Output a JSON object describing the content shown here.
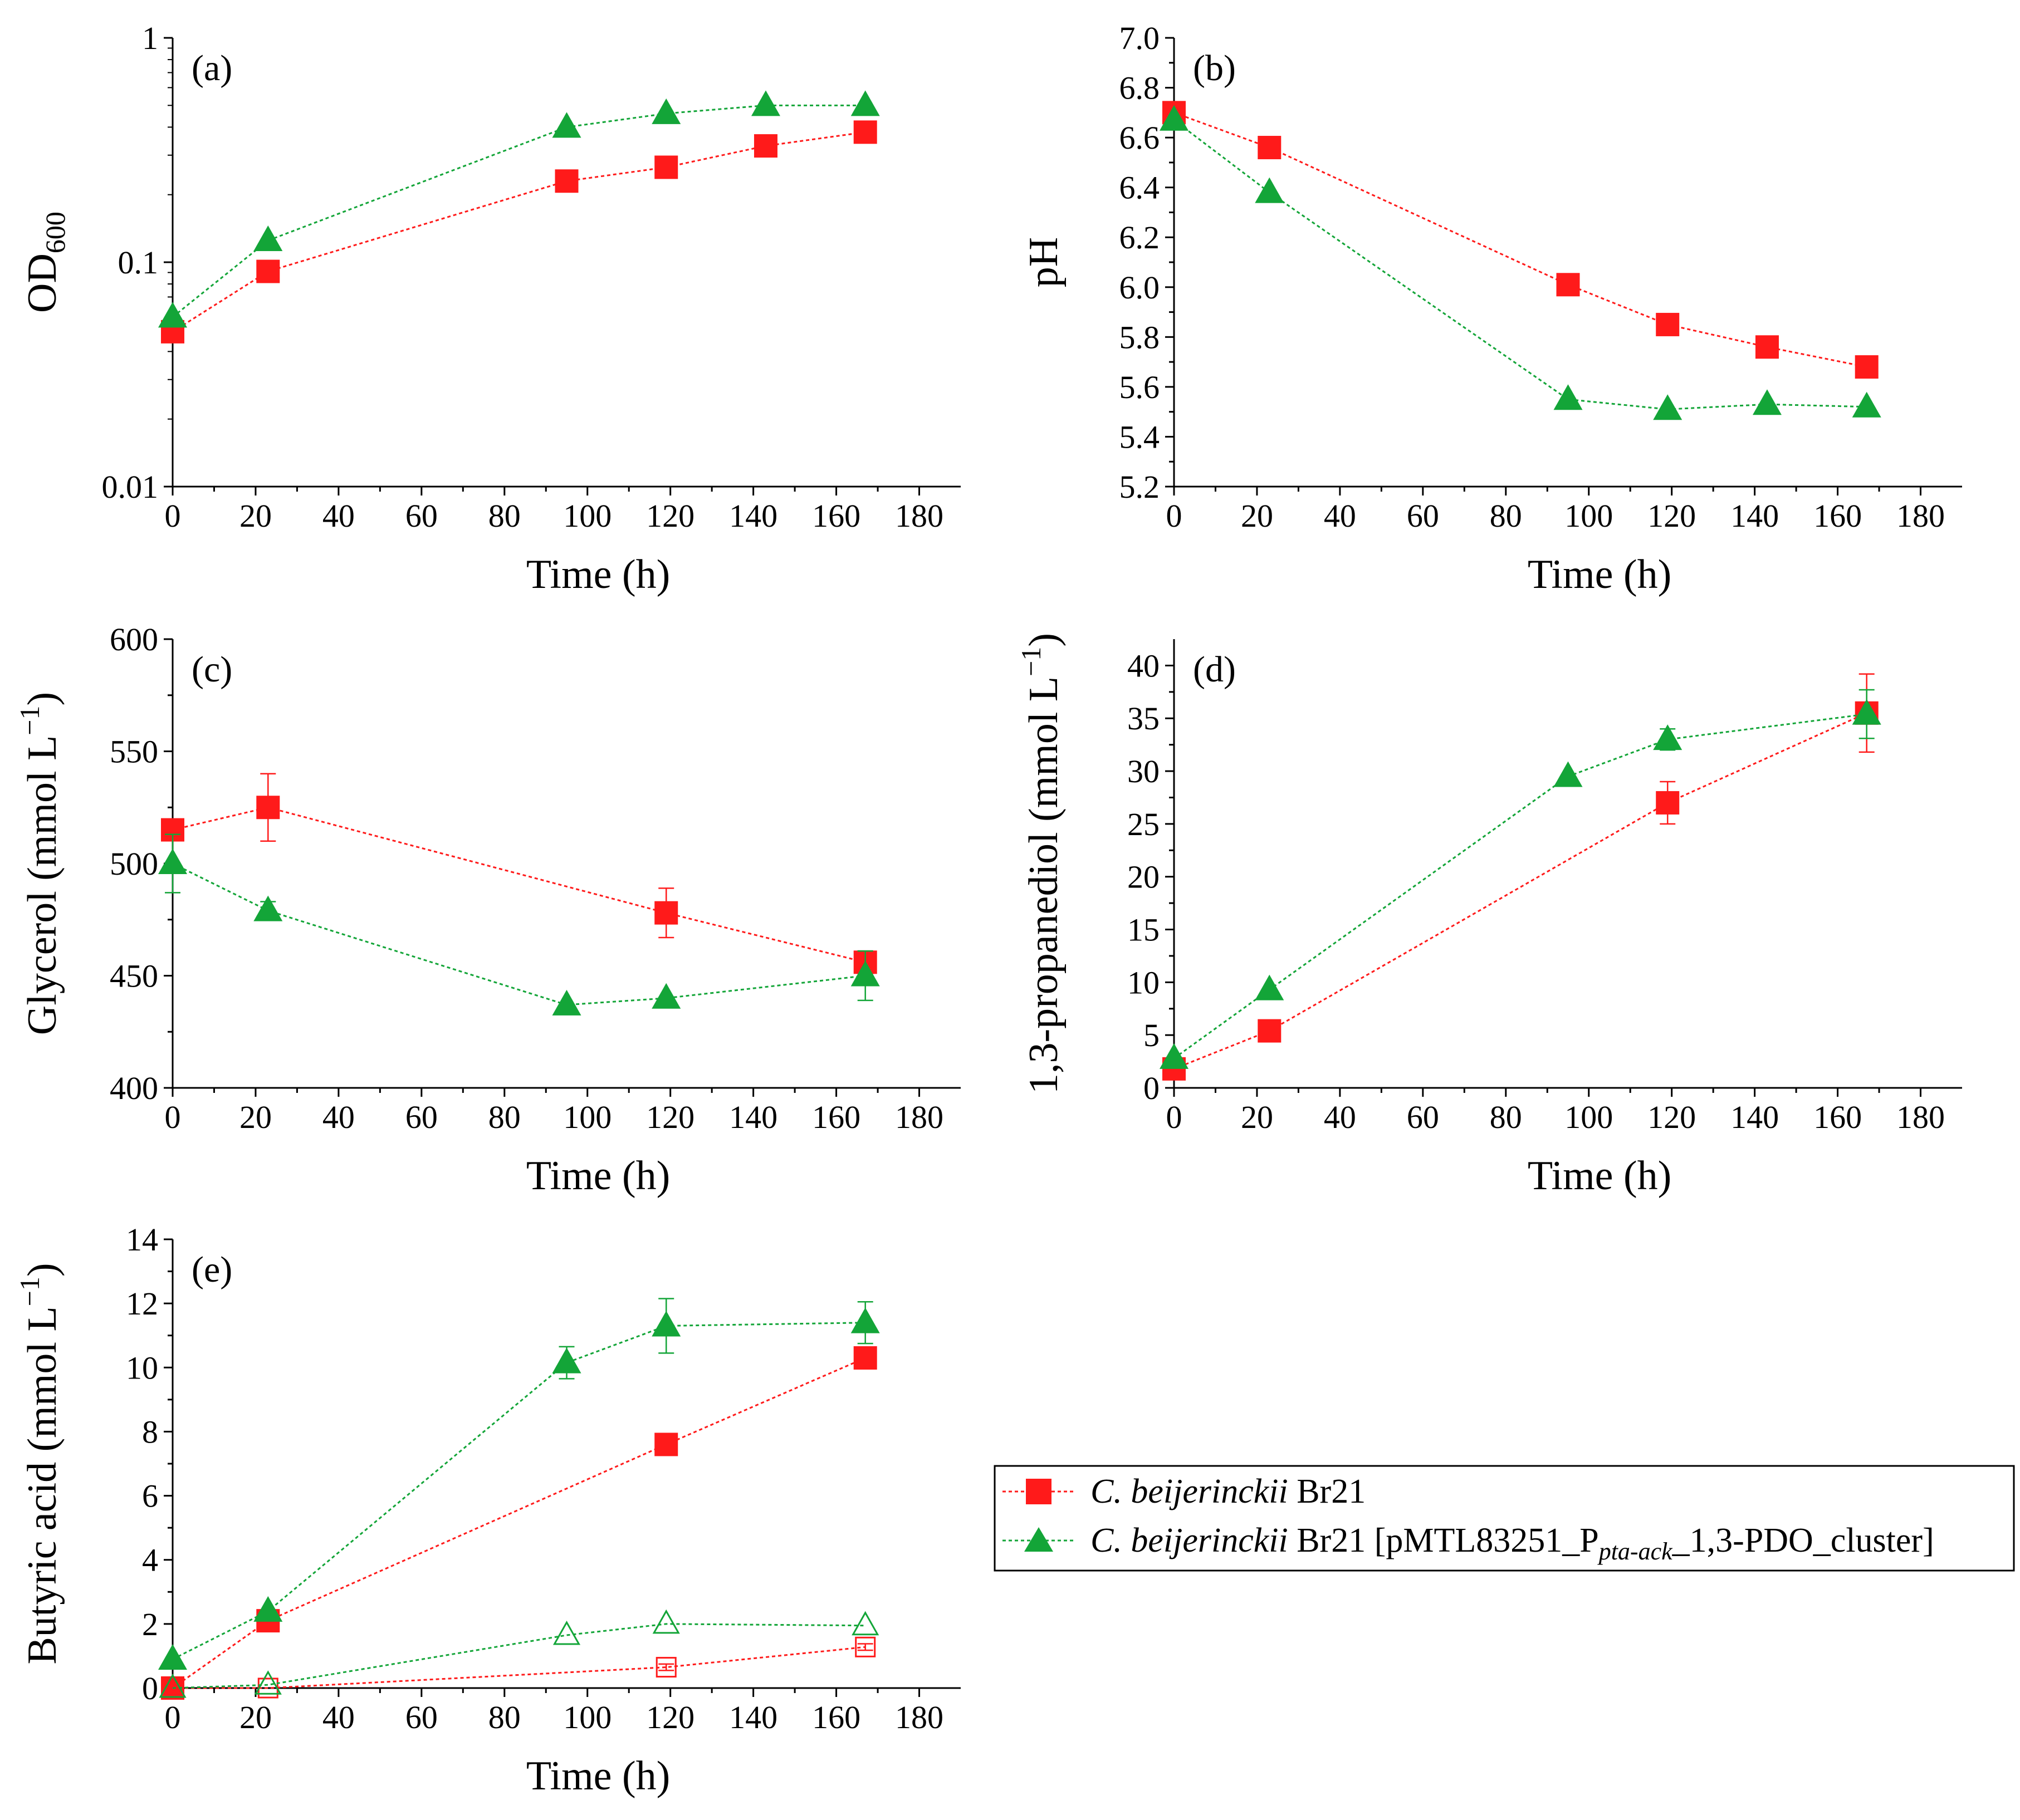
{
  "figure": {
    "legend": {
      "series1_italic": "C. beijerinckii",
      "series1_rest": " Br21",
      "series2_italic": "C. beijerinckii",
      "series2_rest": " Br21 [pMTL83251_P",
      "series2_sub": "pta-ack",
      "series2_tail": "_1,3-PDO_cluster]"
    }
  },
  "chart_data": [
    {
      "id": "a",
      "type": "line",
      "label": "(a)",
      "xlabel": "Time (h)",
      "ylabel_main": "OD",
      "ylabel_sub": "600",
      "yscale": "log",
      "xlim": [
        0,
        190
      ],
      "ylim": [
        0.01,
        1
      ],
      "xticks": [
        0,
        20,
        40,
        60,
        80,
        100,
        120,
        140,
        160,
        180
      ],
      "yticks": [
        0.01,
        0.1,
        1
      ],
      "ytick_labels": [
        "0.01",
        "0.1",
        "1"
      ],
      "series": [
        {
          "name": "C. beijerinckii Br21",
          "color": "#ff1a1a",
          "marker": "square",
          "x": [
            0,
            23,
            95,
            119,
            143,
            167
          ],
          "y": [
            0.049,
            0.091,
            0.23,
            0.265,
            0.33,
            0.38
          ]
        },
        {
          "name": "C. beijerinckii Br21 [pMTL83251_Ppta-ack_1,3-PDO_cluster]",
          "color": "#13a538",
          "marker": "triangle",
          "x": [
            0,
            23,
            95,
            119,
            143,
            167
          ],
          "y": [
            0.057,
            0.125,
            0.4,
            0.46,
            0.5,
            0.5
          ]
        }
      ]
    },
    {
      "id": "b",
      "type": "line",
      "label": "(b)",
      "xlabel": "Time (h)",
      "ylabel_main": "pH",
      "yscale": "linear",
      "xlim": [
        0,
        190
      ],
      "ylim": [
        5.2,
        7.0
      ],
      "xticks": [
        0,
        20,
        40,
        60,
        80,
        100,
        120,
        140,
        160,
        180
      ],
      "yticks": [
        5.2,
        5.4,
        5.6,
        5.8,
        6.0,
        6.2,
        6.4,
        6.6,
        6.8,
        7.0
      ],
      "ytick_labels": [
        "5.2",
        "5.4",
        "5.6",
        "5.8",
        "6.0",
        "6.2",
        "6.4",
        "6.6",
        "6.8",
        "7.0"
      ],
      "series": [
        {
          "name": "C. beijerinckii Br21",
          "color": "#ff1a1a",
          "marker": "square",
          "x": [
            0,
            23,
            95,
            119,
            143,
            167
          ],
          "y": [
            6.7,
            6.56,
            6.01,
            5.85,
            5.76,
            5.68
          ]
        },
        {
          "name": "C. beijerinckii Br21 [pMTL83251_Ppta-ack_1,3-PDO_cluster]",
          "color": "#13a538",
          "marker": "triangle",
          "x": [
            0,
            23,
            95,
            119,
            143,
            167
          ],
          "y": [
            6.67,
            6.38,
            5.55,
            5.51,
            5.53,
            5.52
          ]
        }
      ]
    },
    {
      "id": "c",
      "type": "line",
      "label": "(c)",
      "xlabel": "Time (h)",
      "ylabel_main": "Glycerol (mmol L",
      "ylabel_sup": "−1",
      "ylabel_end": ")",
      "yscale": "linear",
      "xlim": [
        0,
        190
      ],
      "ylim": [
        400,
        600
      ],
      "xticks": [
        0,
        20,
        40,
        60,
        80,
        100,
        120,
        140,
        160,
        180
      ],
      "yticks": [
        400,
        450,
        500,
        550,
        600
      ],
      "ytick_labels": [
        "400",
        "450",
        "500",
        "550",
        "600"
      ],
      "series": [
        {
          "name": "C. beijerinckii Br21",
          "color": "#ff1a1a",
          "marker": "square",
          "x": [
            0,
            23,
            119,
            167
          ],
          "y": [
            515,
            525,
            478,
            456
          ],
          "err": [
            0,
            15,
            11,
            5
          ]
        },
        {
          "name": "C. beijerinckii Br21 [pMTL83251_Ppta-ack_1,3-PDO_cluster]",
          "color": "#13a538",
          "marker": "triangle",
          "x": [
            0,
            23,
            95,
            119,
            167
          ],
          "y": [
            500,
            479,
            437,
            440,
            450
          ],
          "err": [
            13,
            4,
            0,
            0,
            11
          ]
        }
      ]
    },
    {
      "id": "d",
      "type": "line",
      "label": "(d)",
      "xlabel": "Time (h)",
      "ylabel_main": "1,3-propanediol (mmol L",
      "ylabel_sup": "−1",
      "ylabel_end": ")",
      "yscale": "linear",
      "xlim": [
        0,
        190
      ],
      "ylim": [
        0,
        42.5
      ],
      "xticks": [
        0,
        20,
        40,
        60,
        80,
        100,
        120,
        140,
        160,
        180
      ],
      "yticks": [
        0,
        5,
        10,
        15,
        20,
        25,
        30,
        35,
        40
      ],
      "ytick_labels": [
        "0",
        "5",
        "10",
        "15",
        "20",
        "25",
        "30",
        "35",
        "40"
      ],
      "series": [
        {
          "name": "C. beijerinckii Br21",
          "color": "#ff1a1a",
          "marker": "square",
          "x": [
            0,
            23,
            119,
            167
          ],
          "y": [
            1.8,
            5.4,
            27.0,
            35.5
          ],
          "err": [
            0,
            0,
            2.0,
            3.7
          ]
        },
        {
          "name": "C. beijerinckii Br21 [pMTL83251_Ppta-ack_1,3-PDO_cluster]",
          "color": "#13a538",
          "marker": "triangle",
          "x": [
            0,
            23,
            95,
            119,
            167
          ],
          "y": [
            2.8,
            9.3,
            29.5,
            33.0,
            35.4
          ],
          "err": [
            0,
            0,
            0,
            1.0,
            2.3
          ]
        }
      ]
    },
    {
      "id": "e",
      "type": "line",
      "label": "(e)",
      "xlabel": "Time (h)",
      "ylabel_main": "Butyric acid (mmol L",
      "ylabel_sup": "−1",
      "ylabel_end": ")",
      "yscale": "linear",
      "xlim": [
        0,
        190
      ],
      "ylim": [
        0,
        14
      ],
      "xticks": [
        0,
        20,
        40,
        60,
        80,
        100,
        120,
        140,
        160,
        180
      ],
      "yticks": [
        0,
        2,
        4,
        6,
        8,
        10,
        12,
        14
      ],
      "ytick_labels": [
        "0",
        "2",
        "4",
        "6",
        "8",
        "10",
        "12",
        "14"
      ],
      "series": [
        {
          "name": "C. beijerinckii Br21",
          "color": "#ff1a1a",
          "marker": "square",
          "x": [
            0,
            23,
            119,
            167
          ],
          "y": [
            0.0,
            2.1,
            7.6,
            10.3
          ],
          "err": [
            0,
            0,
            0.1,
            0.1
          ]
        },
        {
          "name": "C. beijerinckii Br21 [pMTL83251_Ppta-ack_1,3-PDO_cluster]",
          "color": "#13a538",
          "marker": "triangle",
          "x": [
            0,
            23,
            95,
            119,
            167
          ],
          "y": [
            0.9,
            2.4,
            10.15,
            11.3,
            11.4
          ],
          "err": [
            0,
            0,
            0.5,
            0.85,
            0.65
          ]
        },
        {
          "name": "C. beijerinckii Br21 (open)",
          "color": "#ff1a1a",
          "marker": "square-open",
          "x": [
            0,
            23,
            119,
            167
          ],
          "y": [
            0.0,
            0.0,
            0.65,
            1.28
          ],
          "err": [
            0,
            0,
            0.1,
            0.1
          ]
        },
        {
          "name": "C. beijerinckii Br21 [pMTL83251_Ppta-ack_1,3-PDO_cluster] (open)",
          "color": "#13a538",
          "marker": "triangle-open",
          "x": [
            0,
            23,
            95,
            119,
            167
          ],
          "y": [
            0.0,
            0.1,
            1.65,
            2.0,
            1.95
          ],
          "err": [
            0,
            0,
            0,
            0,
            0
          ]
        }
      ]
    }
  ]
}
